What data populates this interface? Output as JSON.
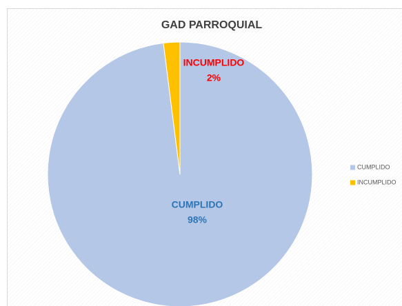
{
  "chart_data": {
    "type": "pie",
    "title": "GAD PARROQUIAL",
    "categories": [
      "CUMPLIDO",
      "INCUMPLIDO"
    ],
    "values": [
      98,
      2
    ],
    "value_labels": [
      "98%",
      "2%"
    ],
    "colors": [
      "#b4c7e7",
      "#ffc000"
    ],
    "label_colors": [
      "#2e75b6",
      "#ff0000"
    ],
    "legend": "right"
  }
}
